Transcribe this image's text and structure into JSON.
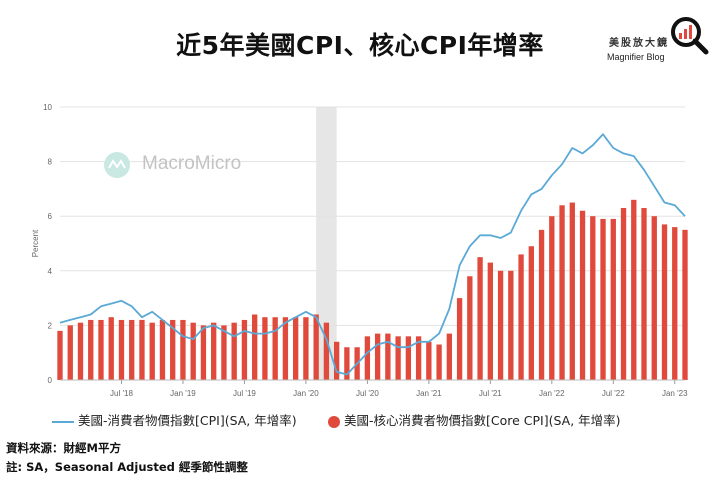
{
  "title": "近5年美國CPI、核心CPI年增率",
  "logo": {
    "cn": "美股放大鏡",
    "en": "Magnifier Blog"
  },
  "watermark": "MacroMicro",
  "source": "資料來源：財經M平方",
  "note": "註: SA，Seasonal Adjusted 經季節性調整",
  "colors": {
    "cpi_line": "#5aa9d6",
    "core_bar": "#e04a3c",
    "recession_shade": "#e6e6e6",
    "grid": "#e3e3e3"
  },
  "chart_data": {
    "type": "bar",
    "ylabel": "Percent",
    "ylim": [
      0,
      10
    ],
    "yticks": [
      0,
      2,
      4,
      6,
      8,
      10
    ],
    "xtick_labels": [
      "Jul '18",
      "Jan '19",
      "Jul '19",
      "Jan '20",
      "Jul '20",
      "Jan '21",
      "Jul '21",
      "Jan '22",
      "Jul '22",
      "Jan '23"
    ],
    "x_start": "2018-01",
    "x_end": "2023-02",
    "shaded_period": [
      "2020-02",
      "2020-04"
    ],
    "grid": true,
    "legend_position": "bottom",
    "series": [
      {
        "name": "美國-消費者物價指數[CPI](SA, 年增率)",
        "type": "line",
        "values": [
          2.1,
          2.2,
          2.3,
          2.4,
          2.7,
          2.8,
          2.9,
          2.7,
          2.3,
          2.5,
          2.2,
          1.9,
          1.6,
          1.5,
          1.9,
          2.0,
          1.8,
          1.6,
          1.8,
          1.7,
          1.7,
          1.8,
          2.1,
          2.3,
          2.5,
          2.3,
          1.5,
          0.3,
          0.2,
          0.6,
          1.0,
          1.3,
          1.4,
          1.2,
          1.2,
          1.4,
          1.4,
          1.7,
          2.6,
          4.2,
          4.9,
          5.3,
          5.3,
          5.2,
          5.4,
          6.2,
          6.8,
          7.0,
          7.5,
          7.9,
          8.5,
          8.3,
          8.6,
          9.0,
          8.5,
          8.3,
          8.2,
          7.7,
          7.1,
          6.5,
          6.4,
          6.0
        ],
        "x_start": "2018-01"
      },
      {
        "name": "美國-核心消費者物價指數[Core CPI](SA, 年增率)",
        "type": "bar",
        "values": [
          1.8,
          2.0,
          2.1,
          2.2,
          2.2,
          2.3,
          2.2,
          2.2,
          2.2,
          2.1,
          2.2,
          2.2,
          2.2,
          2.1,
          2.0,
          2.1,
          2.0,
          2.1,
          2.2,
          2.4,
          2.3,
          2.3,
          2.3,
          2.3,
          2.3,
          2.4,
          2.1,
          1.4,
          1.2,
          1.2,
          1.6,
          1.7,
          1.7,
          1.6,
          1.6,
          1.6,
          1.4,
          1.3,
          1.7,
          3.0,
          3.8,
          4.5,
          4.3,
          4.0,
          4.0,
          4.6,
          4.9,
          5.5,
          6.0,
          6.4,
          6.5,
          6.2,
          6.0,
          5.9,
          5.9,
          6.3,
          6.6,
          6.3,
          6.0,
          5.7,
          5.6,
          5.5
        ],
        "x_start": "2018-01"
      }
    ]
  }
}
